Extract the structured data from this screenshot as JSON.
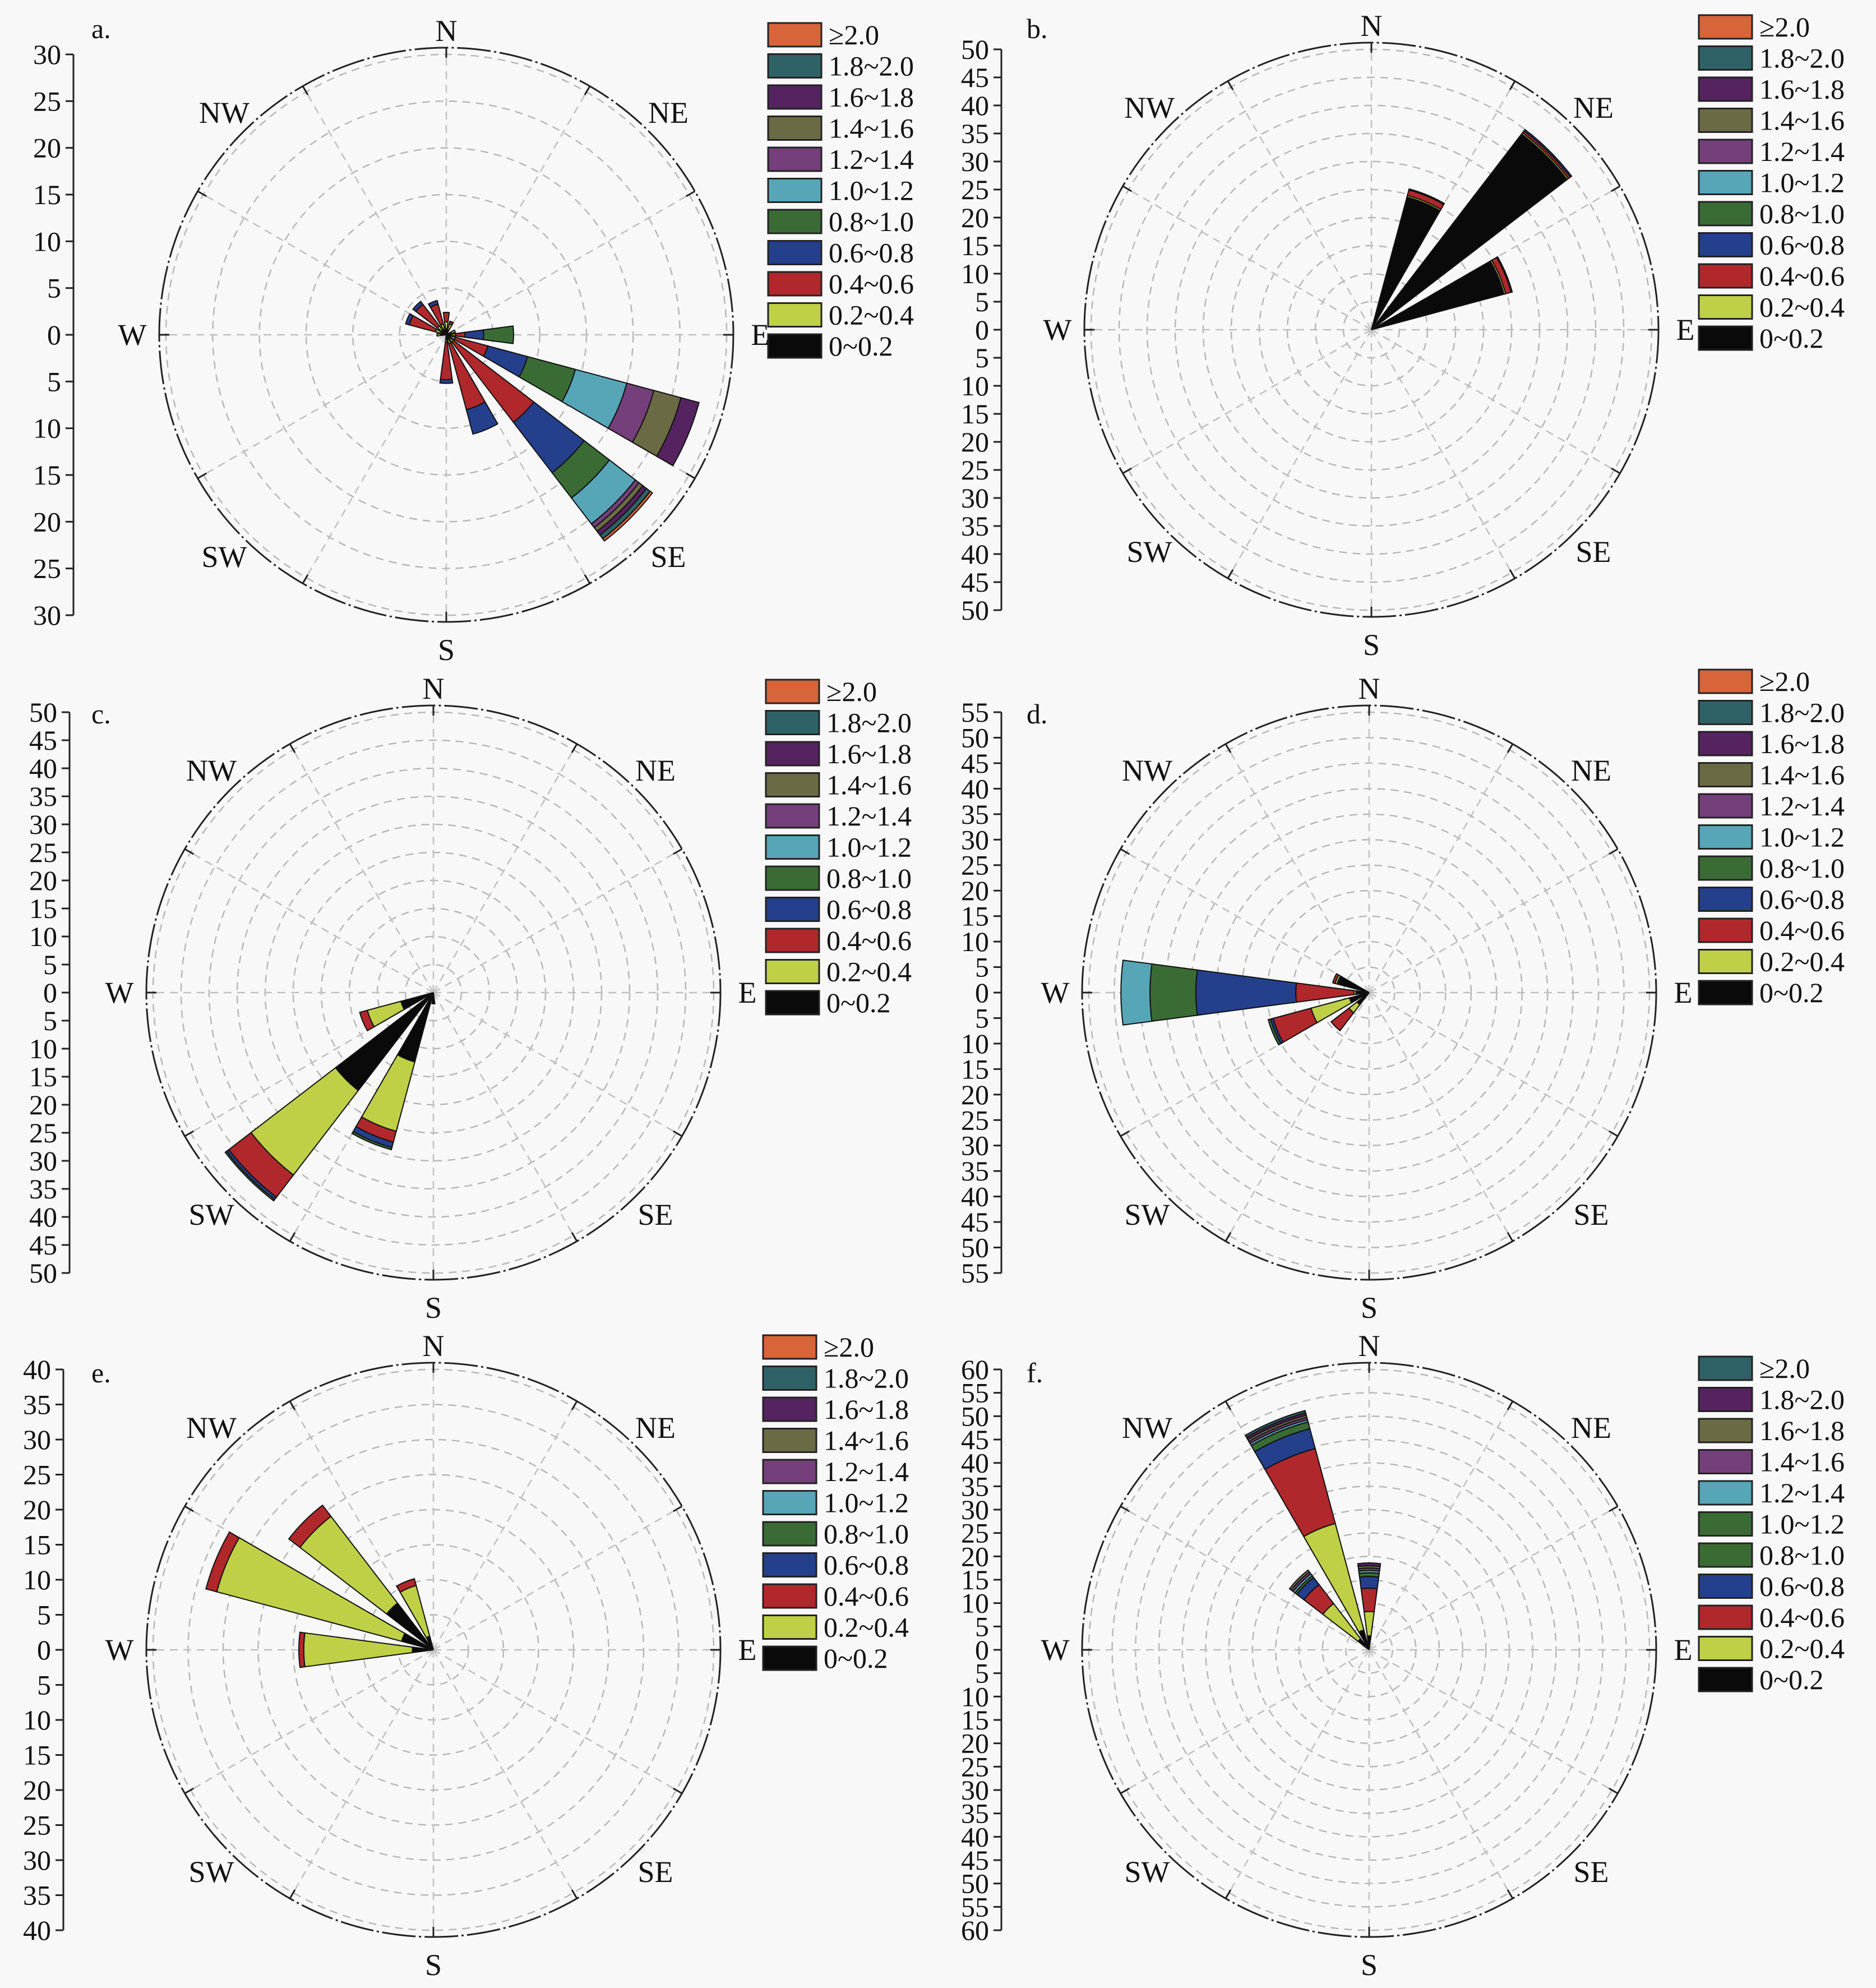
{
  "chart_data": [
    {
      "type": "wind-rose",
      "panel_label": "a.",
      "radial_ticks": [
        0,
        5,
        10,
        15,
        20,
        25,
        30
      ],
      "compass": [
        "N",
        "NE",
        "E",
        "SE",
        "S",
        "SW",
        "W",
        "NW"
      ],
      "legend": {
        "labels": [
          "≥2.0",
          "1.8~2.0",
          "1.6~1.8",
          "1.4~1.6",
          "1.2~1.4",
          "1.0~1.2",
          "0.8~1.0",
          "0.6~0.8",
          "0.4~0.6",
          "0.2~0.4",
          "0~0.2"
        ],
        "colors": [
          "#d8643a",
          "#2f6266",
          "#55235f",
          "#6a6b45",
          "#743f7b",
          "#56a6b8",
          "#3a6b35",
          "#243f8c",
          "#b0282c",
          "#bfd046",
          "#0a0a0a"
        ]
      },
      "bars": [
        {
          "direction": "ESE",
          "values": [
            0.5,
            0.5,
            3.6,
            4.4,
            5.3,
            5.7,
            3.0,
            3.0,
            2.0,
            0,
            0
          ]
        },
        {
          "direction": "SE",
          "values": [
            0.5,
            0.5,
            10.8,
            6.8,
            3.4,
            3.5,
            0.5,
            0.5,
            0.5,
            0.5,
            0.3
          ]
        },
        {
          "direction": "SSE",
          "values": [
            0.5,
            0.5,
            7.3,
            2.7
          ]
        },
        {
          "direction": "S",
          "values": [
            0.5,
            0.3,
            4.0,
            0.4
          ]
        },
        {
          "direction": "E",
          "values": [
            0.5,
            0.5,
            1.0,
            2.0,
            3.2
          ]
        },
        {
          "direction": "ENE",
          "values": [
            0.5,
            0.5
          ]
        },
        {
          "direction": "NNE",
          "values": [
            0.5,
            0.7,
            0.3
          ]
        },
        {
          "direction": "N",
          "values": [
            0.6,
            0.8,
            1.0
          ]
        },
        {
          "direction": "NNW",
          "values": [
            0.6,
            0.6,
            2.2,
            0.4
          ]
        },
        {
          "direction": "NW",
          "values": [
            0.6,
            0.6,
            2.9,
            0.4
          ]
        },
        {
          "direction": "WNW",
          "values": [
            0.6,
            0.6,
            2.9,
            0.4
          ]
        },
        {
          "direction": "W",
          "values": [
            0.6,
            0.4
          ]
        }
      ]
    },
    {
      "type": "wind-rose",
      "panel_label": "b.",
      "radial_ticks": [
        0,
        5,
        10,
        15,
        20,
        25,
        30,
        35,
        40,
        45,
        50
      ],
      "compass": [
        "N",
        "NE",
        "E",
        "SE",
        "S",
        "SW",
        "W",
        "NW"
      ],
      "legend": {
        "labels": [
          "≥2.0",
          "1.8~2.0",
          "1.6~1.8",
          "1.4~1.6",
          "1.2~1.4",
          "1.0~1.2",
          "0.8~1.0",
          "0.6~0.8",
          "0.4~0.6",
          "0.2~0.4",
          "0~0.2"
        ],
        "colors": [
          "#d8643a",
          "#2f6266",
          "#55235f",
          "#6a6b45",
          "#743f7b",
          "#56a6b8",
          "#3a6b35",
          "#243f8c",
          "#b0282c",
          "#bfd046",
          "#0a0a0a"
        ]
      },
      "bars": [
        {
          "direction": "NE",
          "values": [
            44.0,
            0.3,
            0.4,
            0.3
          ]
        },
        {
          "direction": "NNE",
          "values": [
            24.5,
            0.3,
            1.0,
            0.2
          ]
        },
        {
          "direction": "ENE",
          "values": [
            24.5,
            0.3,
            1.0,
            0.2
          ]
        }
      ]
    },
    {
      "type": "wind-rose",
      "panel_label": "c.",
      "radial_ticks": [
        0,
        5,
        10,
        15,
        20,
        25,
        30,
        35,
        40,
        45,
        50
      ],
      "compass": [
        "N",
        "NE",
        "E",
        "SE",
        "S",
        "SW",
        "W",
        "NW"
      ],
      "legend": {
        "labels": [
          "≥2.0",
          "1.8~2.0",
          "1.6~1.8",
          "1.4~1.6",
          "1.2~1.4",
          "1.0~1.2",
          "0.8~1.0",
          "0.6~0.8",
          "0.4~0.6",
          "0.2~0.4",
          "0~0.2"
        ],
        "colors": [
          "#d8643a",
          "#2f6266",
          "#55235f",
          "#6a6b45",
          "#743f7b",
          "#56a6b8",
          "#3a6b35",
          "#243f8c",
          "#b0282c",
          "#bfd046",
          "#0a0a0a"
        ]
      },
      "bars": [
        {
          "direction": "SW",
          "values": [
            22.0,
            19.0,
            5.0,
            0.5,
            0.3
          ]
        },
        {
          "direction": "SSW",
          "values": [
            12.8,
            12.8,
            2.0,
            1.0,
            0.4
          ]
        },
        {
          "direction": "WSW",
          "values": [
            6.0,
            6.2,
            1.4
          ]
        },
        {
          "direction": "S",
          "values": [
            2.0
          ]
        }
      ]
    },
    {
      "type": "wind-rose",
      "panel_label": "d.",
      "radial_ticks": [
        0,
        5,
        10,
        15,
        20,
        25,
        30,
        35,
        40,
        45,
        50,
        55
      ],
      "compass": [
        "N",
        "NE",
        "E",
        "SE",
        "S",
        "SW",
        "W",
        "NW"
      ],
      "legend": {
        "labels": [
          "≥2.0",
          "1.8~2.0",
          "1.6~1.8",
          "1.4~1.6",
          "1.2~1.4",
          "1.0~1.2",
          "0.8~1.0",
          "0.6~0.8",
          "0.4~0.6",
          "0.2~0.4",
          "0~0.2"
        ],
        "colors": [
          "#d8643a",
          "#2f6266",
          "#55235f",
          "#6a6b45",
          "#743f7b",
          "#56a6b8",
          "#3a6b35",
          "#243f8c",
          "#b0282c",
          "#bfd046",
          "#0a0a0a"
        ]
      },
      "bars": [
        {
          "direction": "W",
          "values": [
            2.6,
            0.4,
            11.4,
            19.6,
            9.0,
            5.7
          ]
        },
        {
          "direction": "WSW",
          "values": [
            4.0,
            7.8,
            7.7,
            0.5,
            0.5
          ]
        },
        {
          "direction": "SW",
          "values": [
            3.0,
            2.0,
            4.4
          ]
        },
        {
          "direction": "WNW",
          "values": [
            6.5,
            0.4,
            0.5
          ]
        }
      ]
    },
    {
      "type": "wind-rose",
      "panel_label": "e.",
      "radial_ticks": [
        0,
        5,
        10,
        15,
        20,
        25,
        30,
        35,
        40
      ],
      "compass": [
        "N",
        "NE",
        "E",
        "SE",
        "S",
        "SW",
        "W",
        "NW"
      ],
      "legend": {
        "labels": [
          "≥2.0",
          "1.8~2.0",
          "1.6~1.8",
          "1.4~1.6",
          "1.2~1.4",
          "1.0~1.2",
          "0.8~1.0",
          "0.6~0.8",
          "0.4~0.6",
          "0.2~0.4",
          "0~0.2"
        ],
        "colors": [
          "#d8643a",
          "#2f6266",
          "#55235f",
          "#6a6b45",
          "#743f7b",
          "#56a6b8",
          "#3a6b35",
          "#243f8c",
          "#b0282c",
          "#bfd046",
          "#0a0a0a"
        ]
      },
      "bars": [
        {
          "direction": "WNW",
          "values": [
            4.7,
            27.3,
            1.6
          ]
        },
        {
          "direction": "NW",
          "values": [
            8.4,
            15.6,
            2.0
          ]
        },
        {
          "direction": "NNW",
          "values": [
            2.0,
            7.5,
            1.0
          ]
        },
        {
          "direction": "W",
          "values": [
            3.0,
            15.5,
            0.7
          ]
        }
      ]
    },
    {
      "type": "wind-rose",
      "panel_label": "f.",
      "radial_ticks": [
        0,
        5,
        10,
        15,
        20,
        25,
        30,
        35,
        40,
        45,
        50,
        55,
        60
      ],
      "compass": [
        "N",
        "NE",
        "E",
        "SE",
        "S",
        "SW",
        "W",
        "NW"
      ],
      "legend": {
        "labels": [
          "≥2.0",
          "1.8~2.0",
          "1.6~1.8",
          "1.4~1.6",
          "1.2~1.4",
          "1.0~1.2",
          "0.8~1.0",
          "0.6~0.8",
          "0.4~0.6",
          "0.2~0.4",
          "0~0.2"
        ],
        "colors": [
          "#2f6266",
          "#55235f",
          "#6a6b45",
          "#743f7b",
          "#56a6b8",
          "#3a6b35",
          "#3a6b35",
          "#243f8c",
          "#b0282c",
          "#bfd046",
          "#0a0a0a"
        ]
      },
      "bars": [
        {
          "direction": "NNW",
          "values": [
            4.4,
            23.6,
            16.6,
            4.4,
            1.5,
            0.5,
            0.5,
            0.5,
            0.5,
            0.5
          ]
        },
        {
          "direction": "N",
          "values": [
            3.0,
            5.2,
            5.0,
            2.5,
            0.8,
            0.5,
            0.5,
            0.5,
            0.6
          ]
        },
        {
          "direction": "NW",
          "values": [
            3.0,
            9.5,
            5.1,
            1.9,
            0.5,
            0.5,
            0.5,
            0.5
          ]
        }
      ]
    }
  ]
}
